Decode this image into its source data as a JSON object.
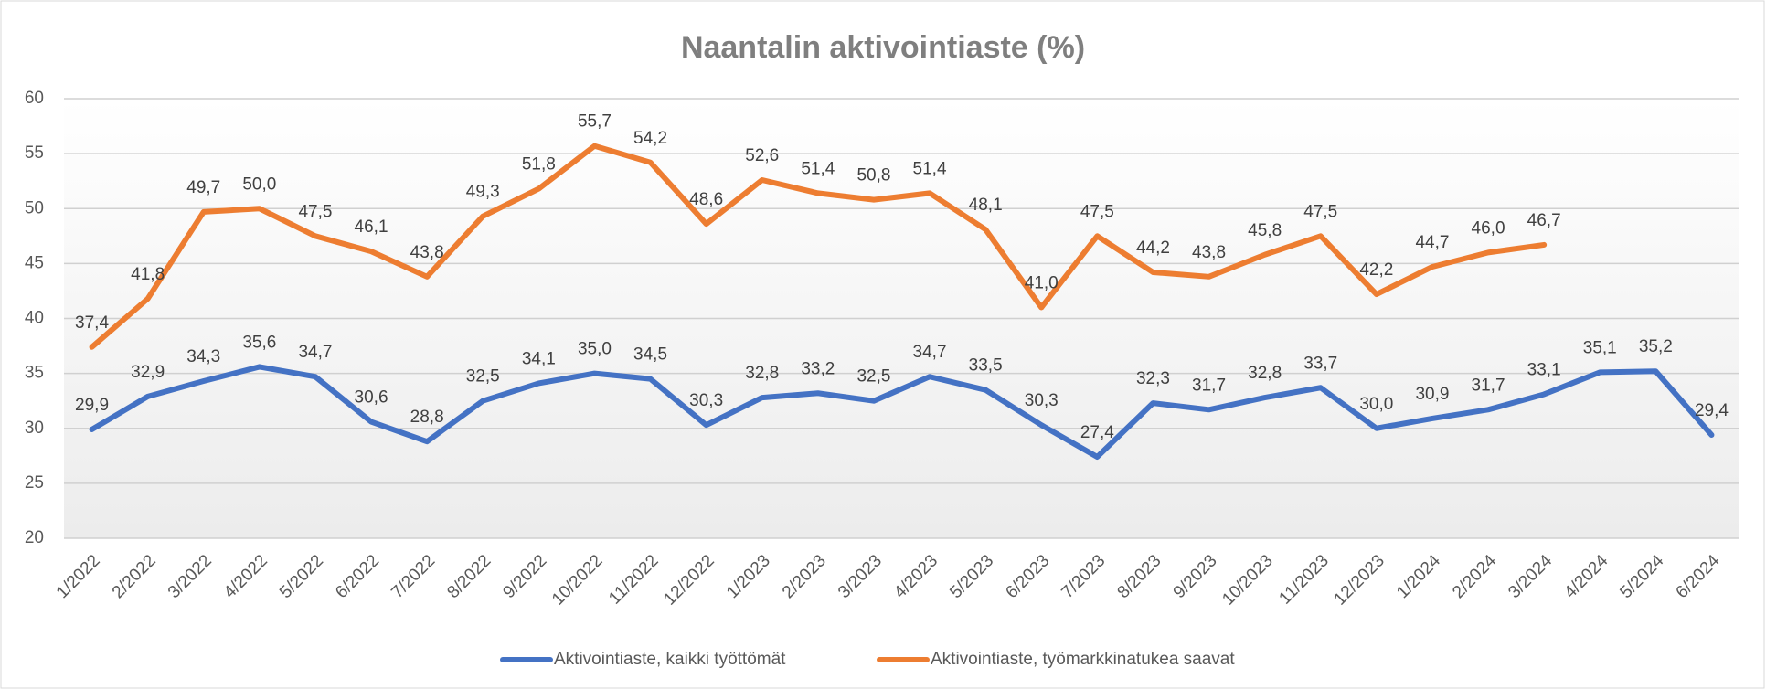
{
  "chart_data": {
    "type": "line",
    "title": "Naantalin aktivointiaste (%)",
    "categories": [
      "1/2022",
      "2/2022",
      "3/2022",
      "4/2022",
      "5/2022",
      "6/2022",
      "7/2022",
      "8/2022",
      "9/2022",
      "10/2022",
      "11/2022",
      "12/2022",
      "1/2023",
      "2/2023",
      "3/2023",
      "4/2023",
      "5/2023",
      "6/2023",
      "7/2023",
      "8/2023",
      "9/2023",
      "10/2023",
      "11/2023",
      "12/2023",
      "1/2024",
      "2/2024",
      "3/2024",
      "4/2024",
      "5/2024",
      "6/2024"
    ],
    "series": [
      {
        "name": "Aktivointiaste, kaikki työttömät",
        "color": "#4472c4",
        "values": [
          29.9,
          32.9,
          34.3,
          35.6,
          34.7,
          30.6,
          28.8,
          32.5,
          34.1,
          35.0,
          34.5,
          30.3,
          32.8,
          33.2,
          32.5,
          34.7,
          33.5,
          30.3,
          27.4,
          32.3,
          31.7,
          32.8,
          33.7,
          30.0,
          30.9,
          31.7,
          33.1,
          35.1,
          35.2,
          29.4
        ],
        "value_labels": [
          "29,9",
          "32,9",
          "34,3",
          "35,6",
          "34,7",
          "30,6",
          "28,8",
          "32,5",
          "34,1",
          "35,0",
          "34,5",
          "30,3",
          "32,8",
          "33,2",
          "32,5",
          "34,7",
          "33,5",
          "30,3",
          "27,4",
          "32,3",
          "31,7",
          "32,8",
          "33,7",
          "30,0",
          "30,9",
          "31,7",
          "33,1",
          "35,1",
          "35,2",
          "29,4"
        ]
      },
      {
        "name": "Aktivointiaste, työmarkkinatukea saavat",
        "color": "#ed7d31",
        "values": [
          37.4,
          41.8,
          49.7,
          50.0,
          47.5,
          46.1,
          43.8,
          49.3,
          51.8,
          55.7,
          54.2,
          48.6,
          52.6,
          51.4,
          50.8,
          51.4,
          48.1,
          41.0,
          47.5,
          44.2,
          43.8,
          45.8,
          47.5,
          42.2,
          44.7,
          46.0,
          46.7,
          null,
          null,
          null
        ],
        "value_labels": [
          "37,4",
          "41,8",
          "49,7",
          "50,0",
          "47,5",
          "46,1",
          "43,8",
          "49,3",
          "51,8",
          "55,7",
          "54,2",
          "48,6",
          "52,6",
          "51,4",
          "50,8",
          "51,4",
          "48,1",
          "41,0",
          "47,5",
          "44,2",
          "43,8",
          "45,8",
          "47,5",
          "42,2",
          "44,7",
          "46,0",
          "46,7",
          null,
          null,
          null
        ]
      }
    ],
    "ylim": [
      20,
      60
    ],
    "yticks": [
      20,
      25,
      30,
      35,
      40,
      45,
      50,
      55,
      60
    ],
    "grid": true,
    "legend": "bottom"
  }
}
